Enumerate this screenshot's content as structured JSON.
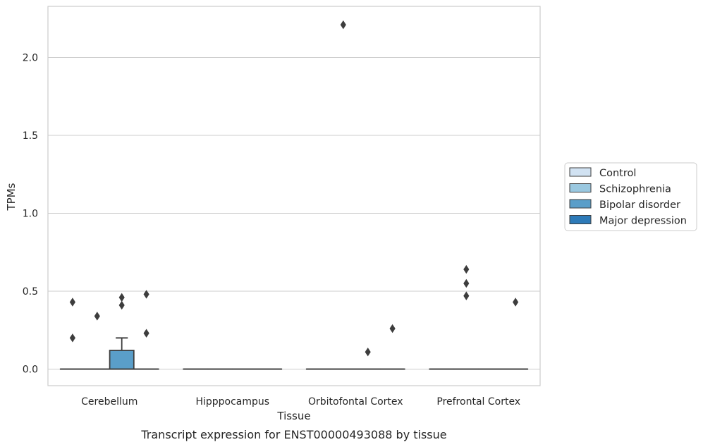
{
  "chart_data": {
    "type": "box",
    "title": "",
    "caption": "Transcript expression for ENST00000493088 by tissue",
    "xlabel": "Tissue",
    "ylabel": "TPMs",
    "ylim": [
      -0.11,
      2.34
    ],
    "yticks": [
      0.0,
      0.5,
      1.0,
      1.5,
      2.0
    ],
    "ytick_labels": [
      "0.0",
      "0.5",
      "1.0",
      "1.5",
      "2.0"
    ],
    "grid": "horizontal",
    "categories": [
      "Cerebellum",
      "Hipppocampus",
      "Orbitofontal Cortex",
      "Prefrontal Cortex"
    ],
    "legend": {
      "placement": "right"
    },
    "series": [
      {
        "name": "Control",
        "color": "#d1e2f2",
        "boxes": [
          {
            "q1": 0,
            "median": 0,
            "q3": 0,
            "whislo": 0,
            "whishi": 0,
            "fliers": [
              0.2,
              0.43
            ]
          },
          {
            "q1": 0,
            "median": 0,
            "q3": 0,
            "whislo": 0,
            "whishi": 0,
            "fliers": []
          },
          {
            "q1": 0,
            "median": 0,
            "q3": 0,
            "whislo": 0,
            "whishi": 0,
            "fliers": []
          },
          {
            "q1": 0,
            "median": 0,
            "q3": 0,
            "whislo": 0,
            "whishi": 0,
            "fliers": []
          }
        ]
      },
      {
        "name": "Schizophrenia",
        "color": "#9ac8e0",
        "boxes": [
          {
            "q1": 0,
            "median": 0,
            "q3": 0,
            "whislo": 0,
            "whishi": 0,
            "fliers": [
              0.34
            ]
          },
          {
            "q1": 0,
            "median": 0,
            "q3": 0,
            "whislo": 0,
            "whishi": 0,
            "fliers": []
          },
          {
            "q1": 0,
            "median": 0,
            "q3": 0,
            "whislo": 0,
            "whishi": 0,
            "fliers": [
              2.21
            ]
          },
          {
            "q1": 0,
            "median": 0,
            "q3": 0,
            "whislo": 0,
            "whishi": 0,
            "fliers": [
              0.47,
              0.55,
              0.64
            ]
          }
        ]
      },
      {
        "name": "Bipolar disorder",
        "color": "#5a9ec9",
        "boxes": [
          {
            "q1": 0,
            "median": 0,
            "q3": 0.12,
            "whislo": 0,
            "whishi": 0.2,
            "fliers": [
              0.41,
              0.46
            ]
          },
          {
            "q1": 0,
            "median": 0,
            "q3": 0,
            "whislo": 0,
            "whishi": 0,
            "fliers": []
          },
          {
            "q1": 0,
            "median": 0,
            "q3": 0,
            "whislo": 0,
            "whishi": 0,
            "fliers": [
              0.11
            ]
          },
          {
            "q1": 0,
            "median": 0,
            "q3": 0,
            "whislo": 0,
            "whishi": 0,
            "fliers": []
          }
        ]
      },
      {
        "name": "Major depression",
        "color": "#2d7ab8",
        "boxes": [
          {
            "q1": 0,
            "median": 0,
            "q3": 0,
            "whislo": 0,
            "whishi": 0,
            "fliers": [
              0.23,
              0.48
            ]
          },
          {
            "q1": 0,
            "median": 0,
            "q3": 0,
            "whislo": 0,
            "whishi": 0,
            "fliers": []
          },
          {
            "q1": 0,
            "median": 0,
            "q3": 0,
            "whislo": 0,
            "whishi": 0,
            "fliers": [
              0.26
            ]
          },
          {
            "q1": 0,
            "median": 0,
            "q3": 0,
            "whislo": 0,
            "whishi": 0,
            "fliers": [
              0.43
            ]
          }
        ]
      }
    ]
  }
}
